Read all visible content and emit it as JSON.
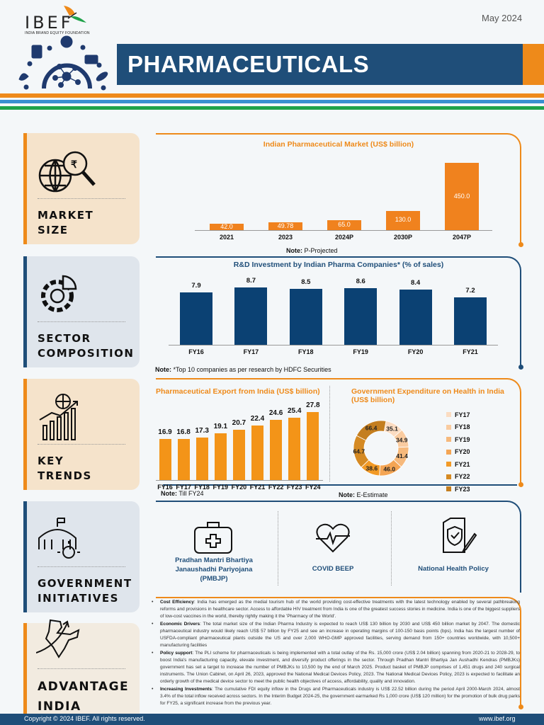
{
  "header": {
    "logo": "IBEF",
    "logo_subtitle": "INDIA BRAND EQUITY FOUNDATION",
    "date": "May 2024",
    "title": "PHARMACEUTICALS"
  },
  "colors": {
    "orange": "#ee8a1a",
    "navy": "#1f4e79",
    "bar_blue": "#0b4173",
    "green": "#1fa24a",
    "light_blue": "#3a8fd0"
  },
  "sections": [
    {
      "label_line1": "MARKET",
      "label_line2": "SIZE",
      "icon": "globe-rupee-magnifier-icon"
    },
    {
      "label_line1": "SECTOR",
      "label_line2": "COMPOSITION",
      "icon": "gear-pie-chart-icon"
    },
    {
      "label_line1": "KEY",
      "label_line2": "TRENDS",
      "icon": "globe-growth-chart-icon"
    },
    {
      "label_line1": "GOVERNMENT",
      "label_line2": "INITIATIVES",
      "icon": "government-building-icon"
    },
    {
      "label_line1": "ADVANTAGE",
      "label_line2": "INDIA",
      "icon": "india-map-arrow-icon"
    }
  ],
  "chart_data": [
    {
      "type": "bar",
      "title": "Indian Pharmaceutical Market (US$ billion)",
      "categories": [
        "2021",
        "2023",
        "2024P",
        "2030P",
        "2047P"
      ],
      "values": [
        42.0,
        49.78,
        65.0,
        130.0,
        450.0
      ],
      "value_labels": [
        "42.0",
        "49.78",
        "65.0",
        "130.0",
        "450.0"
      ],
      "note_label": "Note:",
      "note": "P-Projected",
      "color": "#f0821e"
    },
    {
      "type": "bar",
      "title": "R&D Investment by Indian Pharma Companies* (% of sales)",
      "categories": [
        "FY16",
        "FY17",
        "FY18",
        "FY19",
        "FY20",
        "FY21"
      ],
      "values": [
        7.9,
        8.7,
        8.5,
        8.6,
        8.4,
        7.2
      ],
      "value_labels": [
        "7.9",
        "8.7",
        "8.5",
        "8.6",
        "8.4",
        "7.2"
      ],
      "note_label": "Note:",
      "note": "*Top 10 companies as per research by HDFC Securities",
      "color": "#0b4173"
    },
    {
      "type": "bar",
      "title": "Pharmaceutical Export from India (US$ billion)",
      "categories": [
        "FY16",
        "FY17",
        "FY18",
        "FY19",
        "FY20",
        "FY21",
        "FY22",
        "FY23",
        "FY24"
      ],
      "values": [
        16.9,
        16.8,
        17.3,
        19.1,
        20.7,
        22.4,
        24.6,
        25.4,
        27.8
      ],
      "value_labels": [
        "16.9",
        "16.8",
        "17.3",
        "19.1",
        "20.7",
        "22.4",
        "24.6",
        "25.4",
        "27.8"
      ],
      "note_label": "Note:",
      "note": "Till FY24",
      "color": "#f39418"
    },
    {
      "type": "pie",
      "donut": true,
      "title": "Government Expenditure on Health in India (US$ billion)",
      "categories": [
        "FY17",
        "FY18",
        "FY19",
        "FY20",
        "FY21",
        "FY22",
        "FY23"
      ],
      "values": [
        35.1,
        34.9,
        41.4,
        46.0,
        38.6,
        64.7,
        66.4
      ],
      "value_labels": [
        "35.1",
        "34.9",
        "41.4",
        "46.0",
        "38.6",
        "64.7",
        "66.4"
      ],
      "colors": [
        "#fbdcc2",
        "#f9cba0",
        "#f6b97c",
        "#f4a554",
        "#f29a26",
        "#d58a23",
        "#c47e1f"
      ],
      "legend": "right",
      "note_label": "Note:",
      "note": "E-Estimate"
    }
  ],
  "initiatives": [
    {
      "label": "Pradhan Mantri Bhartiya Janaushadhi Pariyojana (PMBJP)",
      "icon": "first-aid-kit-icon"
    },
    {
      "label": "COVID BEEP",
      "icon": "heart-pulse-icon"
    },
    {
      "label": "National Health Policy",
      "icon": "policy-document-icon"
    }
  ],
  "advantages": [
    {
      "heading": "Cost Efficiency",
      "text": ": India has emerged as the medial tourism hub of the world providing cost-effective treatments with the latest technology enabled by several pathbreaking reforms and provisions in healthcare sector. Access to affordable HIV treatment from India is one of the greatest success stories in medicine. India is one of the biggest suppliers of low-cost vaccines in the world, thereby rightly making it the 'Pharmacy of the World'."
    },
    {
      "heading": "Economic Drivers",
      "text": ": The total market size of the Indian Pharma Industry is expected to reach US$ 130 billion by 2030 and US$ 450 billion market by 2047. The domestic pharmaceutical industry would likely reach US$ 57 billion by FY25 and see an increase in operating margins of 100-150 basis points (bps). India has the largest number of USFDA-compliant pharmaceutical plants outside the US and over 2,000 WHO-GMP approved facilities, serving demand from 150+ countries worldwide, with 10,500+ manufacturing facilities"
    },
    {
      "heading": "Policy support",
      "text": ": The PLI scheme for pharmaceuticals is being implemented with a total outlay of the Rs. 15,000 crore (US$ 2.04 billion) spanning from 2020-21 to 2028-29, to boost India's manufacturing capacity, elevate investment, and diversify product offerings in the sector. Through Pradhan Mantri Bhartiya Jan Aushadhi Kendras (PMBJKs) government has set a target to increase the number of PMBJKs to 10,500 by the end of March 2025. Product basket of PMBJP comprises of 1,451 drugs and 240 surgical instruments. The Union Cabinet, on April 26, 2023, approved the National Medical Devices Policy, 2023. The National Medical Devices Policy, 2023 is expected to facilitate an orderly growth of the medical device sector to meet the public health objectives of access, affordability, quality and innovation."
    },
    {
      "heading": "Increasing Investments",
      "text": ": The cumulative FDI equity inflow in the Drugs and Pharmaceuticals industry is US$ 22.52 billion during the period April 2000-March 2024, almost 3.4% of the total inflow received across sectors. In the Interim Budget 2024-25, the government earmarked Rs 1,000 crore (US$ 120 million) for the promotion of bulk drug parks for FY25, a significant increase from the previous year."
    }
  ],
  "footer": {
    "copyright": "Copyright © 2024 IBEF. All rights reserved.",
    "website": "www.ibef.org"
  }
}
